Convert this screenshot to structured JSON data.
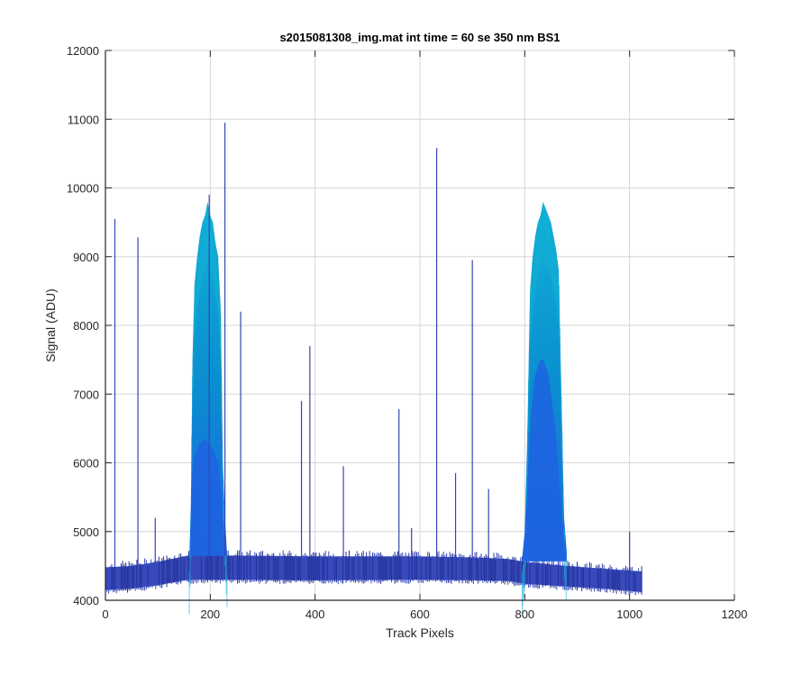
{
  "chart_data": {
    "type": "line",
    "title": "s2015081308_img.mat int time = 60 se  350 nm BS1",
    "xlabel": "Track Pixels",
    "ylabel": "Signal (ADU)",
    "xlim": [
      0,
      1200
    ],
    "ylim": [
      4000,
      12000
    ],
    "x_ticks": [
      0,
      200,
      400,
      600,
      800,
      1000,
      1200
    ],
    "y_ticks": [
      4000,
      5000,
      6000,
      7000,
      8000,
      9000,
      10000,
      11000,
      12000
    ],
    "x_tick_labels": [
      "0",
      "200",
      "400",
      "600",
      "800",
      "1000",
      "1200"
    ],
    "y_tick_labels": [
      "4000",
      "5000",
      "6000",
      "7000",
      "8000",
      "9000",
      "10000",
      "11000",
      "12000"
    ],
    "grid": true,
    "colors": {
      "band_base": "#2b3cb0",
      "band_mid": "#1e63e0",
      "peak_fill": "#0a8fd0",
      "peak_top": "#12b0d6",
      "spike": "#3545b5"
    },
    "baseline_envelope": {
      "x": [
        0,
        50,
        100,
        150,
        170,
        250,
        400,
        600,
        720,
        770,
        800,
        880,
        950,
        1024
      ],
      "low": [
        4150,
        4170,
        4220,
        4290,
        4300,
        4300,
        4290,
        4300,
        4290,
        4280,
        4240,
        4200,
        4170,
        4120
      ],
      "high": [
        4480,
        4500,
        4560,
        4640,
        4650,
        4650,
        4640,
        4640,
        4620,
        4600,
        4560,
        4500,
        4460,
        4420
      ]
    },
    "peaks": [
      {
        "x": [
          160,
          163,
          166,
          170,
          175,
          180,
          185,
          190,
          195,
          200,
          205,
          210,
          215,
          220,
          224,
          228,
          232
        ],
        "max": [
          4600,
          5400,
          7500,
          8600,
          9000,
          9300,
          9500,
          9600,
          9800,
          9600,
          9500,
          9200,
          9000,
          8200,
          6000,
          5200,
          4700
        ],
        "inner": [
          4600,
          5100,
          5900,
          6100,
          6200,
          6300,
          6300,
          6350,
          6300,
          6250,
          6200,
          6100,
          6000,
          5600,
          5200,
          4900,
          4700
        ]
      },
      {
        "x": [
          795,
          800,
          805,
          810,
          815,
          820,
          825,
          830,
          835,
          840,
          845,
          850,
          855,
          860,
          865,
          870,
          875,
          880
        ],
        "max": [
          4600,
          5000,
          6400,
          8500,
          9000,
          9300,
          9500,
          9600,
          9800,
          9700,
          9600,
          9500,
          9300,
          9100,
          8800,
          7000,
          5200,
          4700
        ],
        "inner": [
          4600,
          4900,
          5600,
          6400,
          7000,
          7300,
          7400,
          7500,
          7500,
          7400,
          7300,
          7000,
          6700,
          6400,
          5800,
          5300,
          4900,
          4650
        ]
      }
    ],
    "spikes": [
      {
        "x": 18,
        "y": 9550
      },
      {
        "x": 62,
        "y": 9280
      },
      {
        "x": 95,
        "y": 5200
      },
      {
        "x": 198,
        "y": 9900
      },
      {
        "x": 228,
        "y": 10950
      },
      {
        "x": 258,
        "y": 8200
      },
      {
        "x": 374,
        "y": 6900
      },
      {
        "x": 390,
        "y": 7700
      },
      {
        "x": 454,
        "y": 5950
      },
      {
        "x": 560,
        "y": 6780
      },
      {
        "x": 584,
        "y": 5050
      },
      {
        "x": 632,
        "y": 10580
      },
      {
        "x": 668,
        "y": 5850
      },
      {
        "x": 700,
        "y": 8950
      },
      {
        "x": 731,
        "y": 5620
      },
      {
        "x": 1000,
        "y": 5000
      }
    ]
  }
}
